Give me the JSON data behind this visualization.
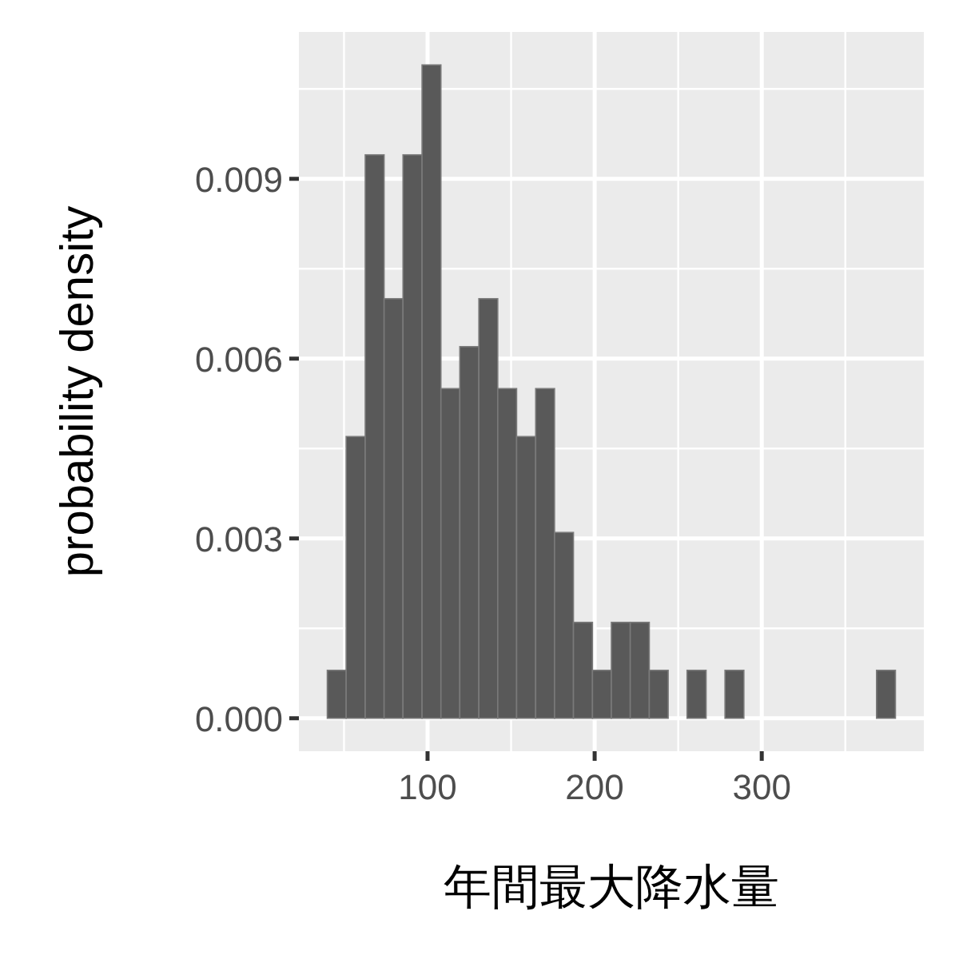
{
  "chart_data": {
    "type": "histogram",
    "xlabel": "年間最大降水量",
    "ylabel": "probability density",
    "bins": [
      40,
      51.3,
      62.7,
      74,
      85.3,
      96.7,
      108,
      119.3,
      130.7,
      142,
      153.3,
      164.7,
      176,
      187.3,
      198.7,
      210,
      221.3,
      232.7,
      244,
      255.3,
      266.7,
      278,
      289.3,
      300.7,
      312,
      323.3,
      334.7,
      346,
      357.3,
      368.7,
      380
    ],
    "values": [
      0.0008,
      0.0047,
      0.0094,
      0.007,
      0.0094,
      0.0109,
      0.0055,
      0.0062,
      0.007,
      0.0055,
      0.0047,
      0.0055,
      0.0031,
      0.0016,
      0.0008,
      0.0016,
      0.0016,
      0.0008,
      0,
      0.0008,
      0,
      0.0008,
      0,
      0,
      0,
      0,
      0,
      0,
      0,
      0.0008
    ],
    "color": "#595959",
    "xlim": [
      23,
      397
    ],
    "ylim": [
      -0.00055,
      0.01145
    ],
    "xticks": [
      100,
      200,
      300
    ],
    "yticks": [
      {
        "value": 0,
        "label": "0.000"
      },
      {
        "value": 0.003,
        "label": "0.003"
      },
      {
        "value": 0.006,
        "label": "0.006"
      },
      {
        "value": 0.009,
        "label": "0.009"
      }
    ],
    "grid": true
  }
}
